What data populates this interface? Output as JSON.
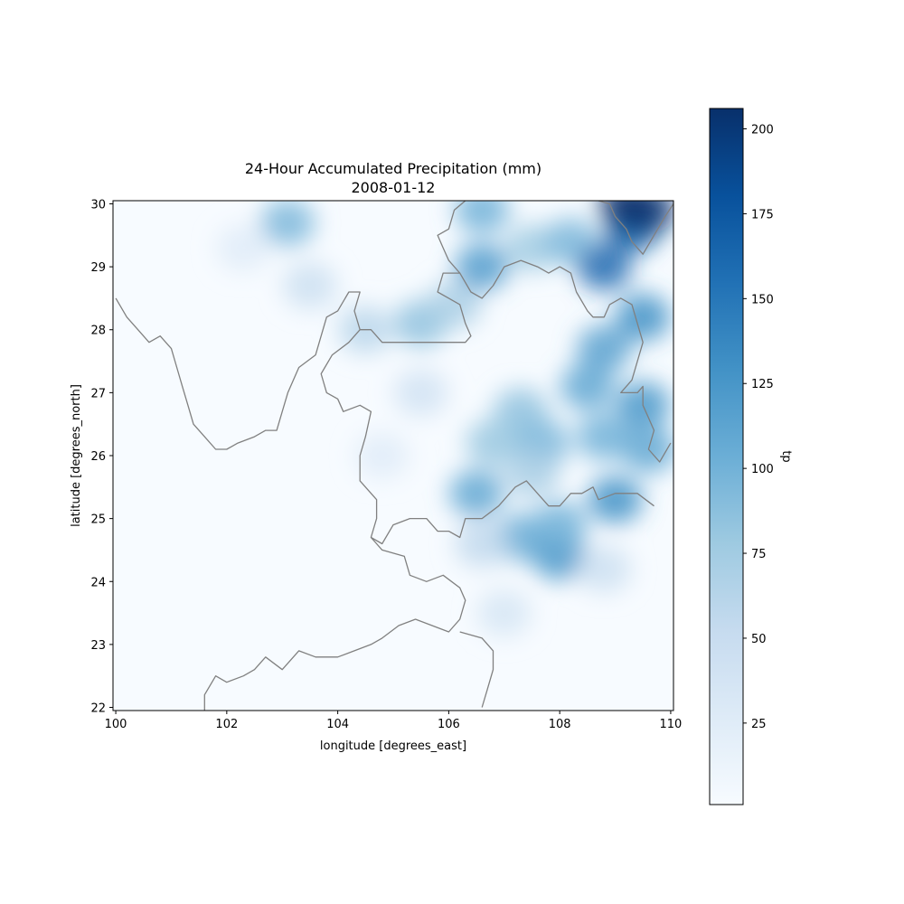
{
  "figure": {
    "title_line1": "24-Hour Accumulated Precipitation (mm)",
    "title_line2": "2008-01-12"
  },
  "chart_data": {
    "type": "heatmap",
    "title": "24-Hour Accumulated Precipitation (mm)",
    "subtitle": "2008-01-12",
    "xlabel": "longitude [degrees_east]",
    "ylabel": "latitude [degrees_north]",
    "xlim": [
      99.95,
      110.05
    ],
    "ylim": [
      21.95,
      30.05
    ],
    "x_ticks": [
      100,
      102,
      104,
      106,
      108,
      110
    ],
    "x_tick_labels": [
      "100",
      "102",
      "104",
      "106",
      "108",
      "110"
    ],
    "y_ticks": [
      22,
      23,
      24,
      25,
      26,
      27,
      28,
      29,
      30
    ],
    "y_tick_labels": [
      "22",
      "23",
      "24",
      "25",
      "26",
      "27",
      "28",
      "29",
      "30"
    ],
    "colorbar": {
      "label": "tp",
      "colormap": "Blues",
      "range": [
        1,
        206
      ],
      "ticks": [
        25,
        50,
        75,
        100,
        125,
        150,
        175,
        200
      ],
      "tick_labels": [
        "25",
        "50",
        "75",
        "100",
        "125",
        "150",
        "175",
        "200"
      ]
    },
    "border_color": "#808080",
    "precip_cells": [
      {
        "lon": 103.1,
        "lat": 29.7,
        "value": 95
      },
      {
        "lon": 103.5,
        "lat": 28.7,
        "value": 45
      },
      {
        "lon": 104.5,
        "lat": 28.0,
        "value": 60
      },
      {
        "lon": 105.5,
        "lat": 28.1,
        "value": 85
      },
      {
        "lon": 106.1,
        "lat": 28.4,
        "value": 70
      },
      {
        "lon": 106.6,
        "lat": 29.9,
        "value": 100
      },
      {
        "lon": 106.6,
        "lat": 29.0,
        "value": 120
      },
      {
        "lon": 107.5,
        "lat": 29.3,
        "value": 75
      },
      {
        "lon": 108.2,
        "lat": 29.4,
        "value": 95
      },
      {
        "lon": 108.8,
        "lat": 29.0,
        "value": 160
      },
      {
        "lon": 109.3,
        "lat": 29.6,
        "value": 170
      },
      {
        "lon": 109.6,
        "lat": 29.9,
        "value": 200
      },
      {
        "lon": 109.2,
        "lat": 30.0,
        "value": 205
      },
      {
        "lon": 109.5,
        "lat": 28.2,
        "value": 130
      },
      {
        "lon": 108.8,
        "lat": 27.7,
        "value": 115
      },
      {
        "lon": 108.5,
        "lat": 27.1,
        "value": 110
      },
      {
        "lon": 109.5,
        "lat": 26.8,
        "value": 125
      },
      {
        "lon": 107.3,
        "lat": 26.7,
        "value": 85
      },
      {
        "lon": 106.8,
        "lat": 26.2,
        "value": 80
      },
      {
        "lon": 107.7,
        "lat": 26.2,
        "value": 95
      },
      {
        "lon": 108.8,
        "lat": 26.3,
        "value": 100
      },
      {
        "lon": 109.6,
        "lat": 26.1,
        "value": 110
      },
      {
        "lon": 106.5,
        "lat": 25.4,
        "value": 110
      },
      {
        "lon": 107.5,
        "lat": 25.7,
        "value": 70
      },
      {
        "lon": 109.0,
        "lat": 25.3,
        "value": 130
      },
      {
        "lon": 107.3,
        "lat": 24.7,
        "value": 105
      },
      {
        "lon": 108.0,
        "lat": 24.4,
        "value": 125
      },
      {
        "lon": 108.0,
        "lat": 24.9,
        "value": 100
      },
      {
        "lon": 106.6,
        "lat": 24.6,
        "value": 55
      },
      {
        "lon": 108.8,
        "lat": 24.2,
        "value": 45
      },
      {
        "lon": 107.0,
        "lat": 23.5,
        "value": 35
      },
      {
        "lon": 105.5,
        "lat": 27.0,
        "value": 40
      },
      {
        "lon": 104.8,
        "lat": 26.0,
        "value": 25
      },
      {
        "lon": 102.3,
        "lat": 29.3,
        "value": 25
      }
    ],
    "boundaries": [
      [
        [
          100.0,
          28.5
        ],
        [
          100.2,
          28.2
        ],
        [
          100.4,
          28.0
        ],
        [
          100.6,
          27.8
        ],
        [
          100.8,
          27.9
        ],
        [
          101.0,
          27.7
        ],
        [
          101.1,
          27.4
        ],
        [
          101.2,
          27.1
        ],
        [
          101.3,
          26.8
        ],
        [
          101.4,
          26.5
        ],
        [
          101.6,
          26.3
        ],
        [
          101.8,
          26.1
        ],
        [
          102.0,
          26.1
        ],
        [
          102.2,
          26.2
        ],
        [
          102.5,
          26.3
        ],
        [
          102.7,
          26.4
        ],
        [
          102.9,
          26.4
        ],
        [
          103.0,
          26.7
        ],
        [
          103.1,
          27.0
        ],
        [
          103.3,
          27.4
        ],
        [
          103.6,
          27.6
        ],
        [
          103.7,
          27.9
        ],
        [
          103.8,
          28.2
        ],
        [
          104.0,
          28.3
        ],
        [
          104.2,
          28.6
        ],
        [
          104.4,
          28.6
        ],
        [
          104.3,
          28.3
        ],
        [
          104.4,
          28.0
        ],
        [
          104.6,
          28.0
        ],
        [
          104.8,
          27.8
        ],
        [
          105.1,
          27.8
        ],
        [
          105.3,
          27.8
        ],
        [
          105.5,
          27.8
        ],
        [
          105.7,
          27.8
        ],
        [
          105.9,
          27.8
        ],
        [
          106.1,
          27.8
        ],
        [
          106.3,
          27.8
        ],
        [
          106.4,
          27.9
        ],
        [
          106.3,
          28.1
        ],
        [
          106.2,
          28.4
        ],
        [
          106.0,
          28.5
        ],
        [
          105.8,
          28.6
        ],
        [
          105.9,
          28.9
        ],
        [
          106.2,
          28.9
        ],
        [
          106.4,
          28.6
        ],
        [
          106.6,
          28.5
        ],
        [
          106.8,
          28.7
        ],
        [
          107.0,
          29.0
        ],
        [
          107.3,
          29.1
        ],
        [
          107.6,
          29.0
        ],
        [
          107.8,
          28.9
        ],
        [
          108.0,
          29.0
        ],
        [
          108.2,
          28.9
        ],
        [
          108.3,
          28.6
        ],
        [
          108.5,
          28.3
        ],
        [
          108.6,
          28.2
        ],
        [
          108.8,
          28.2
        ],
        [
          108.9,
          28.4
        ],
        [
          109.1,
          28.5
        ],
        [
          109.3,
          28.4
        ],
        [
          109.4,
          28.1
        ],
        [
          109.5,
          27.8
        ],
        [
          109.4,
          27.5
        ],
        [
          109.3,
          27.2
        ],
        [
          109.1,
          27.0
        ],
        [
          109.4,
          27.0
        ],
        [
          109.5,
          27.1
        ],
        [
          109.5,
          26.8
        ],
        [
          109.6,
          26.6
        ],
        [
          109.7,
          26.4
        ],
        [
          109.6,
          26.1
        ],
        [
          109.8,
          25.9
        ],
        [
          110.0,
          26.2
        ]
      ],
      [
        [
          106.3,
          30.05
        ],
        [
          106.1,
          29.9
        ],
        [
          106.0,
          29.6
        ],
        [
          105.8,
          29.5
        ],
        [
          105.9,
          29.3
        ],
        [
          106.0,
          29.1
        ],
        [
          106.2,
          28.9
        ]
      ],
      [
        [
          108.7,
          30.05
        ],
        [
          108.9,
          30.0
        ],
        [
          109.0,
          29.8
        ],
        [
          109.2,
          29.6
        ],
        [
          109.3,
          29.4
        ],
        [
          109.5,
          29.2
        ],
        [
          109.7,
          29.5
        ],
        [
          109.9,
          29.8
        ],
        [
          110.05,
          30.0
        ]
      ],
      [
        [
          104.4,
          28.0
        ],
        [
          104.2,
          27.8
        ],
        [
          103.9,
          27.6
        ],
        [
          103.7,
          27.3
        ],
        [
          103.8,
          27.0
        ],
        [
          104.0,
          26.9
        ],
        [
          104.1,
          26.7
        ],
        [
          104.4,
          26.8
        ],
        [
          104.6,
          26.7
        ],
        [
          104.5,
          26.3
        ],
        [
          104.4,
          26.0
        ],
        [
          104.4,
          25.6
        ],
        [
          104.7,
          25.3
        ],
        [
          104.7,
          25.0
        ],
        [
          104.6,
          24.7
        ],
        [
          104.8,
          24.6
        ],
        [
          105.0,
          24.9
        ],
        [
          105.3,
          25.0
        ],
        [
          105.6,
          25.0
        ],
        [
          105.8,
          24.8
        ],
        [
          106.0,
          24.8
        ],
        [
          106.2,
          24.7
        ],
        [
          106.3,
          25.0
        ],
        [
          106.6,
          25.0
        ],
        [
          106.9,
          25.2
        ],
        [
          107.2,
          25.5
        ],
        [
          107.4,
          25.6
        ],
        [
          107.6,
          25.4
        ],
        [
          107.8,
          25.2
        ],
        [
          108.0,
          25.2
        ],
        [
          108.2,
          25.4
        ],
        [
          108.4,
          25.4
        ],
        [
          108.6,
          25.5
        ],
        [
          108.7,
          25.3
        ],
        [
          109.0,
          25.4
        ],
        [
          109.4,
          25.4
        ],
        [
          109.7,
          25.2
        ]
      ],
      [
        [
          104.6,
          24.7
        ],
        [
          104.8,
          24.5
        ],
        [
          105.2,
          24.4
        ],
        [
          105.3,
          24.1
        ],
        [
          105.6,
          24.0
        ],
        [
          105.9,
          24.1
        ],
        [
          106.2,
          23.9
        ],
        [
          106.3,
          23.7
        ],
        [
          106.2,
          23.4
        ],
        [
          106.0,
          23.2
        ],
        [
          105.7,
          23.3
        ],
        [
          105.4,
          23.4
        ],
        [
          105.1,
          23.3
        ],
        [
          104.8,
          23.1
        ],
        [
          104.6,
          23.0
        ],
        [
          104.3,
          22.9
        ],
        [
          104.0,
          22.8
        ],
        [
          103.6,
          22.8
        ],
        [
          103.3,
          22.9
        ],
        [
          103.0,
          22.6
        ],
        [
          102.7,
          22.8
        ],
        [
          102.5,
          22.6
        ],
        [
          102.3,
          22.5
        ],
        [
          102.0,
          22.4
        ],
        [
          101.8,
          22.5
        ],
        [
          101.6,
          22.2
        ],
        [
          101.6,
          21.95
        ]
      ],
      [
        [
          106.2,
          23.2
        ],
        [
          106.6,
          23.1
        ],
        [
          106.8,
          22.9
        ],
        [
          106.8,
          22.6
        ],
        [
          106.7,
          22.3
        ],
        [
          106.6,
          22.0
        ]
      ]
    ]
  }
}
